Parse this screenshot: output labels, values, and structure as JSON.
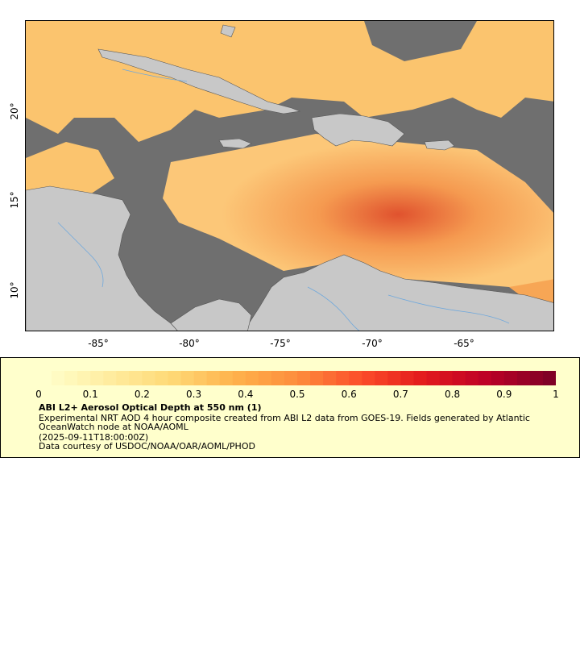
{
  "map": {
    "x_axis": {
      "ticks": [
        "-85°",
        "-80°",
        "-75°",
        "-70°",
        "-65°"
      ],
      "tick_values": [
        -85,
        -80,
        -75,
        -70,
        -65
      ],
      "range": [
        -89,
        -60
      ]
    },
    "y_axis": {
      "ticks": [
        "20°",
        "15°",
        "10°"
      ],
      "tick_values": [
        20,
        15,
        10
      ],
      "range": [
        8,
        25
      ]
    },
    "colors": {
      "no_data": "#6f6f6f",
      "land": "#c8c8c8",
      "rivers": "#6fa8dc",
      "borders": "#555555"
    }
  },
  "legend": {
    "colorbar_ticks": [
      "0",
      "0.1",
      "0.2",
      "0.3",
      "0.4",
      "0.5",
      "0.6",
      "0.7",
      "0.8",
      "0.9",
      "1"
    ],
    "colorbar_range": [
      0,
      1
    ],
    "colorbar_colors": [
      "#ffffcc",
      "#ffeda0",
      "#fed976",
      "#feb24c",
      "#fd8d3c",
      "#fc4e2a",
      "#e31a1c",
      "#bd0026",
      "#800026"
    ],
    "title": "ABI L2+ Aerosol Optical Depth at 550 nm (1)",
    "description": "Experimental NRT AOD 4 hour composite created from ABI L2 data from GOES-19. Fields generated by Atlantic OceanWatch node at NOAA/AOML",
    "timestamp": "(2025-09-11T18:00:00Z)",
    "credit": "Data courtesy of USDOC/NOAA/OAR/AOML/PHOD"
  }
}
